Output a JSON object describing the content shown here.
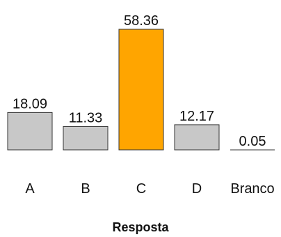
{
  "chart_data": {
    "type": "bar",
    "categories": [
      "A",
      "B",
      "C",
      "D",
      "Branco"
    ],
    "values": [
      18.09,
      11.33,
      58.36,
      12.17,
      0.05
    ],
    "value_labels": [
      "18.09",
      "11.33",
      "58.36",
      "12.17",
      "0.05"
    ],
    "title": "",
    "xlabel": "Resposta",
    "ylabel": "",
    "ylim": [
      0,
      58.36
    ],
    "grid": false,
    "colors": [
      "#c8c8c8",
      "#c8c8c8",
      "#ffa500",
      "#c8c8c8",
      "#c8c8c8"
    ],
    "highlight_category": "C"
  }
}
